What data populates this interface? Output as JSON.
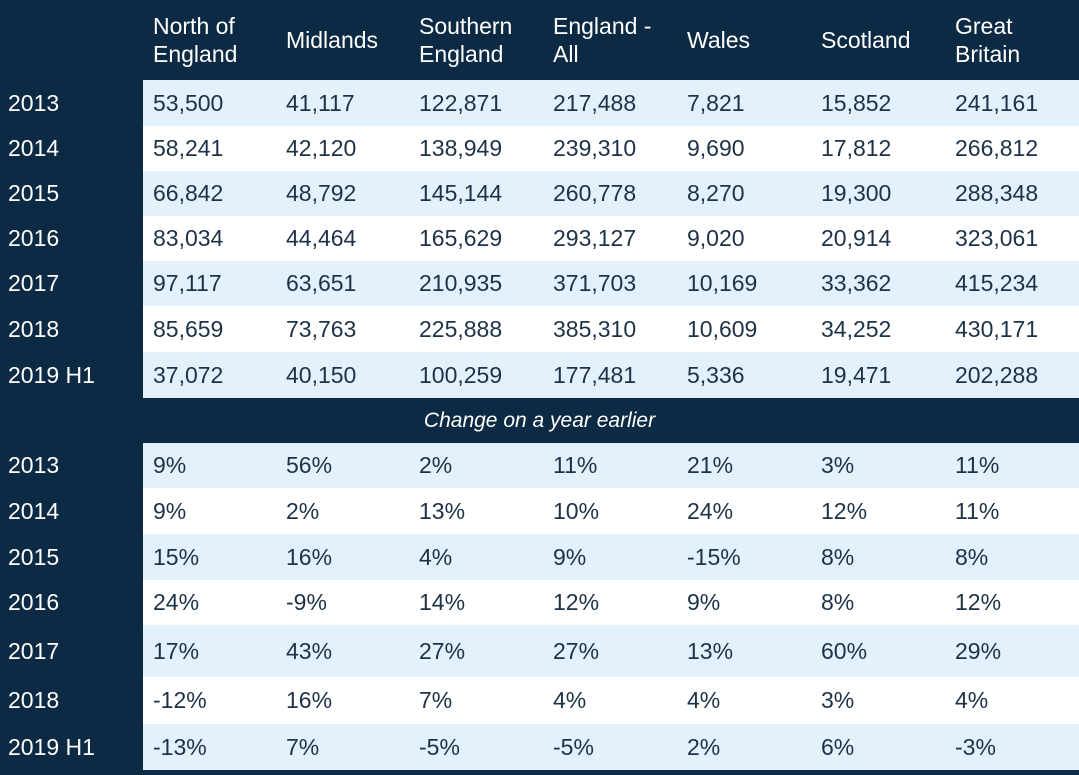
{
  "headers": [
    "",
    "North of England",
    "Midlands",
    "Southern England",
    "England - All",
    "Wales",
    "Scotland",
    "Great Britain"
  ],
  "volume_rows": [
    {
      "year": "2013",
      "values": [
        "53,500",
        "41,117",
        "122,871",
        "217,488",
        "7,821",
        "15,852",
        "241,161"
      ]
    },
    {
      "year": "2014",
      "values": [
        "58,241",
        "42,120",
        "138,949",
        "239,310",
        "9,690",
        "17,812",
        "266,812"
      ]
    },
    {
      "year": "2015",
      "values": [
        "66,842",
        "48,792",
        "145,144",
        "260,778",
        "8,270",
        "19,300",
        "288,348"
      ]
    },
    {
      "year": "2016",
      "values": [
        "83,034",
        "44,464",
        "165,629",
        "293,127",
        "9,020",
        "20,914",
        "323,061"
      ]
    },
    {
      "year": "2017",
      "values": [
        "97,117",
        "63,651",
        "210,935",
        "371,703",
        "10,169",
        "33,362",
        "415,234"
      ]
    },
    {
      "year": "2018",
      "values": [
        "85,659",
        "73,763",
        "225,888",
        "385,310",
        "10,609",
        "34,252",
        "430,171"
      ]
    },
    {
      "year": "2019 H1",
      "values": [
        "37,072",
        "40,150",
        "100,259",
        "177,481",
        "5,336",
        "19,471",
        "202,288"
      ]
    }
  ],
  "separator_label": "Change on a year earlier",
  "change_rows": [
    {
      "year": "2013",
      "values": [
        "9%",
        "56%",
        "2%",
        "11%",
        "21%",
        "3%",
        "11%"
      ]
    },
    {
      "year": "2014",
      "values": [
        "9%",
        "2%",
        "13%",
        "10%",
        "24%",
        "12%",
        "11%"
      ]
    },
    {
      "year": "2015",
      "values": [
        "15%",
        "16%",
        "4%",
        "9%",
        "-15%",
        "8%",
        "8%"
      ]
    },
    {
      "year": "2016",
      "values": [
        "24%",
        "-9%",
        "14%",
        "12%",
        "9%",
        "8%",
        "12%"
      ]
    },
    {
      "year": "2017",
      "values": [
        "17%",
        "43%",
        "27%",
        "27%",
        "13%",
        "60%",
        "29%"
      ]
    },
    {
      "year": "2018",
      "values": [
        "-12%",
        "16%",
        "7%",
        "4%",
        "4%",
        "3%",
        "4%"
      ]
    },
    {
      "year": "2019 H1",
      "values": [
        "-13%",
        "7%",
        "-5%",
        "-5%",
        "2%",
        "6%",
        "-3%"
      ]
    }
  ]
}
